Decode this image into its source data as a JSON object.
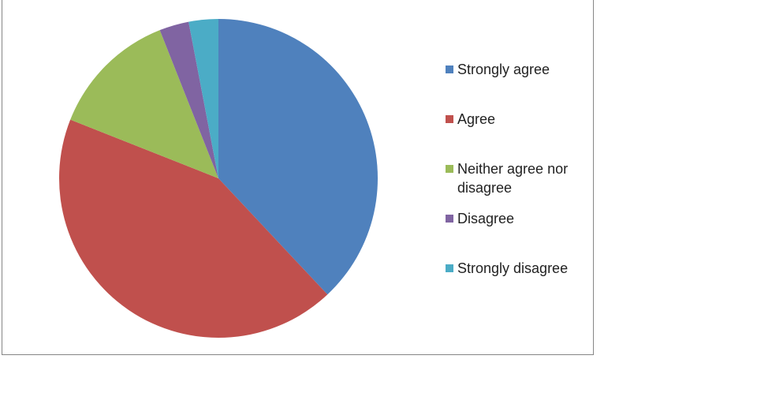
{
  "chart_data": {
    "type": "pie",
    "categories": [
      "Strongly agree",
      "Agree",
      "Neither agree nor disagree",
      "Disagree",
      "Strongly disagree"
    ],
    "values": [
      38,
      43,
      13,
      3,
      3
    ],
    "colors": [
      "#4f81bd",
      "#c0504d",
      "#9bbb59",
      "#8064a2",
      "#4bacc6"
    ],
    "legend": "right"
  }
}
